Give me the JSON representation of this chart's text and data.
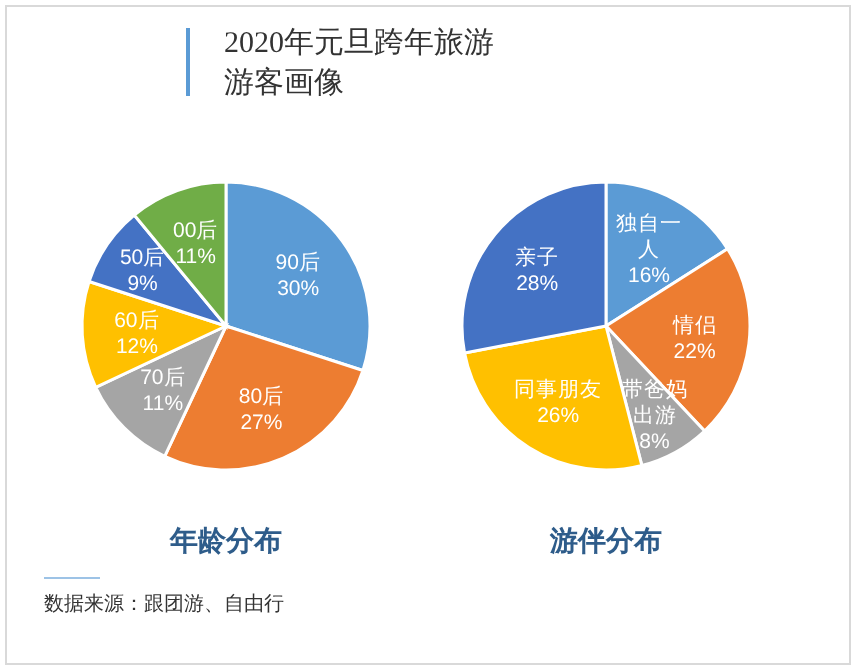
{
  "chart_data": [
    {
      "type": "pie",
      "title": "2020年元旦跨年旅游游客画像",
      "xlabel": "年龄分布",
      "categories": [
        "90后",
        "80后",
        "70后",
        "60后",
        "50后",
        "00后"
      ],
      "values": [
        30,
        27,
        11,
        12,
        9,
        11
      ],
      "colors": [
        "#5b9bd5",
        "#ed7d31",
        "#a5a5a5",
        "#ffc000",
        "#4472c4",
        "#70ad47"
      ],
      "value_labels": [
        "30%",
        "27%",
        "11%",
        "12%",
        "9%",
        "11%"
      ],
      "annotations": [
        "数据来源：跟团游、自由行"
      ]
    },
    {
      "type": "pie",
      "xlabel": "游伴分布",
      "categories": [
        "独自一人",
        "情侣",
        "带爸妈出游",
        "同事朋友",
        "亲子"
      ],
      "values": [
        16,
        22,
        8,
        26,
        28
      ],
      "colors": [
        "#5b9bd5",
        "#ed7d31",
        "#a5a5a5",
        "#ffc000",
        "#4472c4"
      ],
      "value_labels": [
        "16%",
        "22%",
        "8%",
        "26%",
        "28%"
      ]
    }
  ]
}
